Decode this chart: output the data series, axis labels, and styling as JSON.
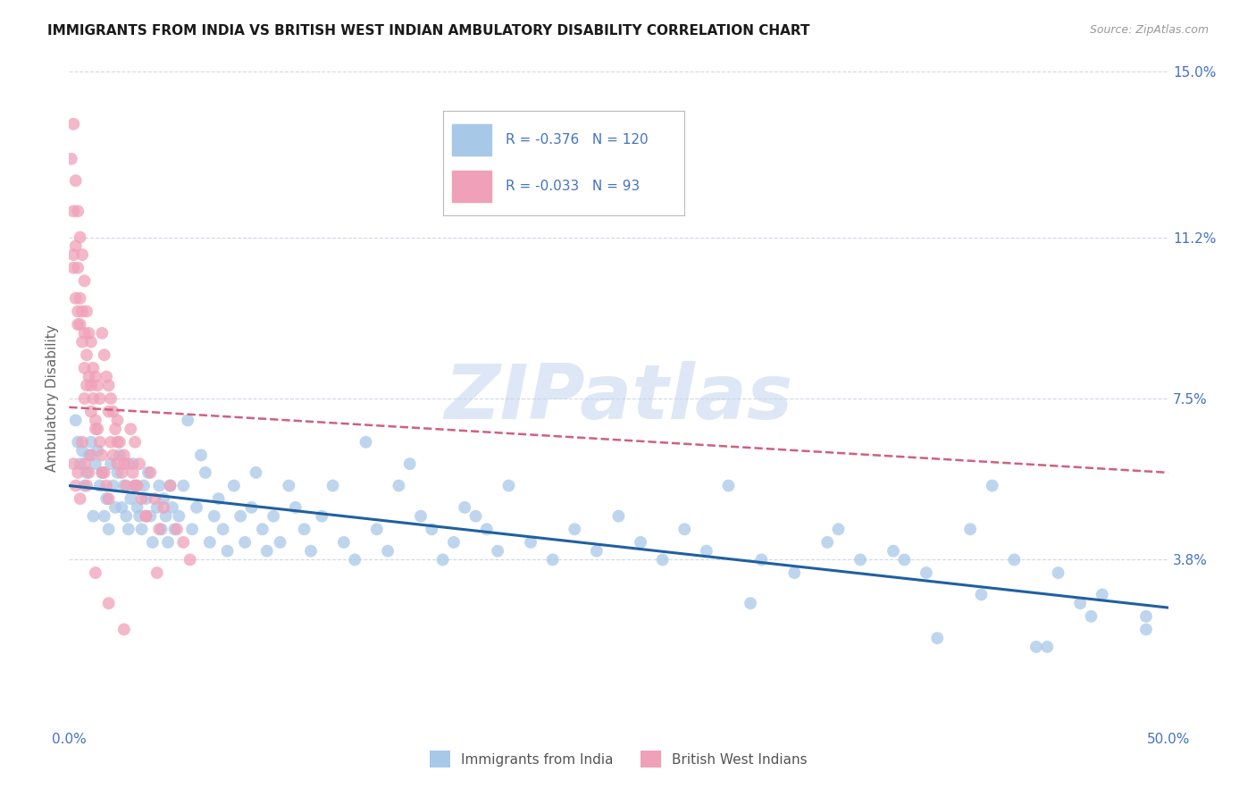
{
  "title": "IMMIGRANTS FROM INDIA VS BRITISH WEST INDIAN AMBULATORY DISABILITY CORRELATION CHART",
  "source": "Source: ZipAtlas.com",
  "ylabel": "Ambulatory Disability",
  "xlim": [
    0.0,
    0.5
  ],
  "ylim": [
    0.0,
    0.15
  ],
  "ytick_positions": [
    0.038,
    0.075,
    0.112,
    0.15
  ],
  "ytick_labels": [
    "3.8%",
    "7.5%",
    "11.2%",
    "15.0%"
  ],
  "grid_color": "#d0d8e4",
  "background_color": "#ffffff",
  "series": [
    {
      "name": "Immigrants from India",
      "color": "#a8c8e8",
      "R": -0.376,
      "N": 120,
      "trend_color": "#2060a0",
      "trend_style": "solid",
      "trend_x0": 0.0,
      "trend_y0": 0.055,
      "trend_x1": 0.5,
      "trend_y1": 0.027,
      "x": [
        0.003,
        0.004,
        0.005,
        0.006,
        0.007,
        0.008,
        0.009,
        0.01,
        0.011,
        0.012,
        0.013,
        0.014,
        0.015,
        0.016,
        0.017,
        0.018,
        0.019,
        0.02,
        0.021,
        0.022,
        0.023,
        0.024,
        0.025,
        0.026,
        0.027,
        0.028,
        0.029,
        0.03,
        0.031,
        0.032,
        0.033,
        0.034,
        0.035,
        0.036,
        0.037,
        0.038,
        0.04,
        0.041,
        0.042,
        0.043,
        0.044,
        0.045,
        0.046,
        0.047,
        0.048,
        0.05,
        0.052,
        0.054,
        0.056,
        0.058,
        0.06,
        0.062,
        0.064,
        0.066,
        0.068,
        0.07,
        0.072,
        0.075,
        0.078,
        0.08,
        0.083,
        0.085,
        0.088,
        0.09,
        0.093,
        0.096,
        0.1,
        0.103,
        0.107,
        0.11,
        0.115,
        0.12,
        0.125,
        0.13,
        0.135,
        0.14,
        0.145,
        0.15,
        0.155,
        0.16,
        0.165,
        0.17,
        0.175,
        0.18,
        0.185,
        0.19,
        0.195,
        0.2,
        0.21,
        0.22,
        0.23,
        0.24,
        0.25,
        0.26,
        0.27,
        0.28,
        0.29,
        0.3,
        0.315,
        0.33,
        0.345,
        0.36,
        0.375,
        0.39,
        0.41,
        0.43,
        0.45,
        0.47,
        0.49,
        0.42,
        0.38,
        0.35,
        0.31,
        0.49,
        0.46,
        0.44,
        0.415,
        0.395,
        0.445,
        0.465
      ],
      "y": [
        0.07,
        0.065,
        0.06,
        0.063,
        0.055,
        0.058,
        0.062,
        0.065,
        0.048,
        0.06,
        0.063,
        0.055,
        0.058,
        0.048,
        0.052,
        0.045,
        0.06,
        0.055,
        0.05,
        0.058,
        0.062,
        0.05,
        0.055,
        0.048,
        0.045,
        0.052,
        0.06,
        0.055,
        0.05,
        0.048,
        0.045,
        0.055,
        0.052,
        0.058,
        0.048,
        0.042,
        0.05,
        0.055,
        0.045,
        0.052,
        0.048,
        0.042,
        0.055,
        0.05,
        0.045,
        0.048,
        0.055,
        0.07,
        0.045,
        0.05,
        0.062,
        0.058,
        0.042,
        0.048,
        0.052,
        0.045,
        0.04,
        0.055,
        0.048,
        0.042,
        0.05,
        0.058,
        0.045,
        0.04,
        0.048,
        0.042,
        0.055,
        0.05,
        0.045,
        0.04,
        0.048,
        0.055,
        0.042,
        0.038,
        0.065,
        0.045,
        0.04,
        0.055,
        0.06,
        0.048,
        0.045,
        0.038,
        0.042,
        0.05,
        0.048,
        0.045,
        0.04,
        0.055,
        0.042,
        0.038,
        0.045,
        0.04,
        0.048,
        0.042,
        0.038,
        0.045,
        0.04,
        0.055,
        0.038,
        0.035,
        0.042,
        0.038,
        0.04,
        0.035,
        0.045,
        0.038,
        0.035,
        0.03,
        0.025,
        0.055,
        0.038,
        0.045,
        0.028,
        0.022,
        0.028,
        0.018,
        0.03,
        0.02,
        0.018,
        0.025
      ]
    },
    {
      "name": "British West Indians",
      "color": "#f0a0b8",
      "R": -0.033,
      "N": 93,
      "trend_color": "#d06080",
      "trend_style": "dashed",
      "trend_x0": 0.0,
      "trend_y0": 0.073,
      "trend_x1": 0.5,
      "trend_y1": 0.058,
      "x": [
        0.001,
        0.002,
        0.002,
        0.002,
        0.003,
        0.003,
        0.003,
        0.004,
        0.004,
        0.004,
        0.005,
        0.005,
        0.005,
        0.006,
        0.006,
        0.006,
        0.007,
        0.007,
        0.007,
        0.008,
        0.008,
        0.008,
        0.009,
        0.009,
        0.01,
        0.01,
        0.01,
        0.011,
        0.011,
        0.012,
        0.012,
        0.013,
        0.013,
        0.014,
        0.014,
        0.015,
        0.015,
        0.016,
        0.016,
        0.017,
        0.017,
        0.018,
        0.018,
        0.019,
        0.019,
        0.02,
        0.02,
        0.021,
        0.022,
        0.022,
        0.023,
        0.024,
        0.025,
        0.026,
        0.027,
        0.028,
        0.029,
        0.03,
        0.031,
        0.032,
        0.033,
        0.035,
        0.037,
        0.039,
        0.041,
        0.043,
        0.046,
        0.049,
        0.052,
        0.055,
        0.002,
        0.003,
        0.004,
        0.005,
        0.006,
        0.007,
        0.008,
        0.009,
        0.01,
        0.012,
        0.015,
        0.018,
        0.022,
        0.025,
        0.03,
        0.035,
        0.04,
        0.012,
        0.018,
        0.025,
        0.002,
        0.004,
        0.007
      ],
      "y": [
        0.13,
        0.138,
        0.118,
        0.105,
        0.125,
        0.11,
        0.098,
        0.118,
        0.105,
        0.095,
        0.112,
        0.098,
        0.092,
        0.108,
        0.095,
        0.088,
        0.102,
        0.09,
        0.082,
        0.095,
        0.085,
        0.078,
        0.09,
        0.08,
        0.088,
        0.078,
        0.072,
        0.082,
        0.075,
        0.08,
        0.07,
        0.078,
        0.068,
        0.075,
        0.065,
        0.09,
        0.062,
        0.085,
        0.058,
        0.08,
        0.055,
        0.078,
        0.052,
        0.075,
        0.065,
        0.072,
        0.062,
        0.068,
        0.07,
        0.06,
        0.065,
        0.058,
        0.062,
        0.055,
        0.06,
        0.068,
        0.058,
        0.065,
        0.055,
        0.06,
        0.052,
        0.048,
        0.058,
        0.052,
        0.045,
        0.05,
        0.055,
        0.045,
        0.042,
        0.038,
        0.06,
        0.055,
        0.058,
        0.052,
        0.065,
        0.06,
        0.055,
        0.058,
        0.062,
        0.068,
        0.058,
        0.072,
        0.065,
        0.06,
        0.055,
        0.048,
        0.035,
        0.035,
        0.028,
        0.022,
        0.108,
        0.092,
        0.075
      ]
    }
  ],
  "legend_color": "#4472c4",
  "title_fontsize": 11,
  "axis_label_color": "#666666",
  "right_axis_label_color": "#4472c4",
  "watermark_text": "ZIPatlas",
  "watermark_color": "#c8d8ef"
}
